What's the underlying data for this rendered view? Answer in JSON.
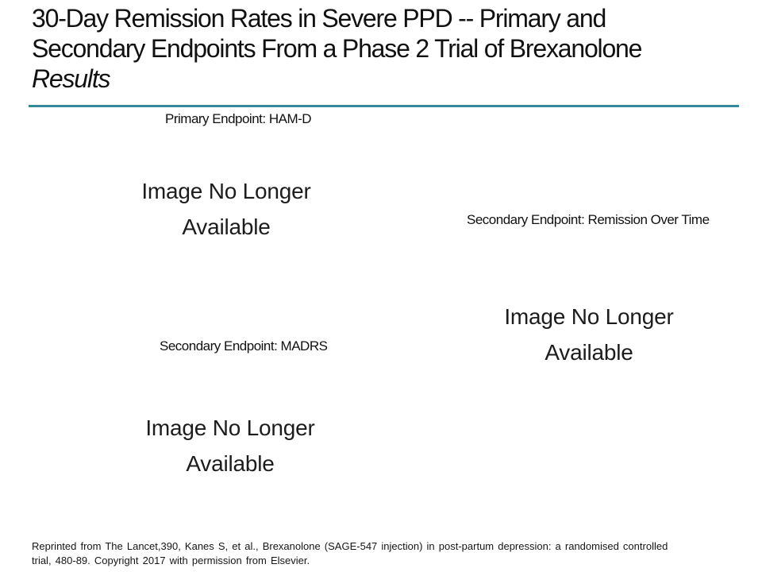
{
  "accent_color": "#35899B",
  "title": {
    "line1": "30-Day Remission Rates in Severe PPD -- Primary and",
    "line2": "Secondary Endpoints From a Phase 2 Trial of Brexanolone",
    "line3": "Results"
  },
  "sections": {
    "primary_hamd": {
      "caption": "Primary Endpoint: HAM-D",
      "placeholder_text": "Image No Longer Available"
    },
    "secondary_remission": {
      "caption": "Secondary Endpoint: Remission Over Time",
      "placeholder_text": "Image No Longer Available"
    },
    "secondary_madrs": {
      "caption": "Secondary Endpoint: MADRS",
      "placeholder_text": "Image No Longer Available"
    }
  },
  "footer": {
    "line1": "Reprinted from The Lancet,390, Kanes S, et al., Brexanolone (SAGE-547 injection) in post-partum depression: a randomised controlled",
    "line2": "trial, 480-89.  Copyright 2017 with permission from Elsevier."
  }
}
